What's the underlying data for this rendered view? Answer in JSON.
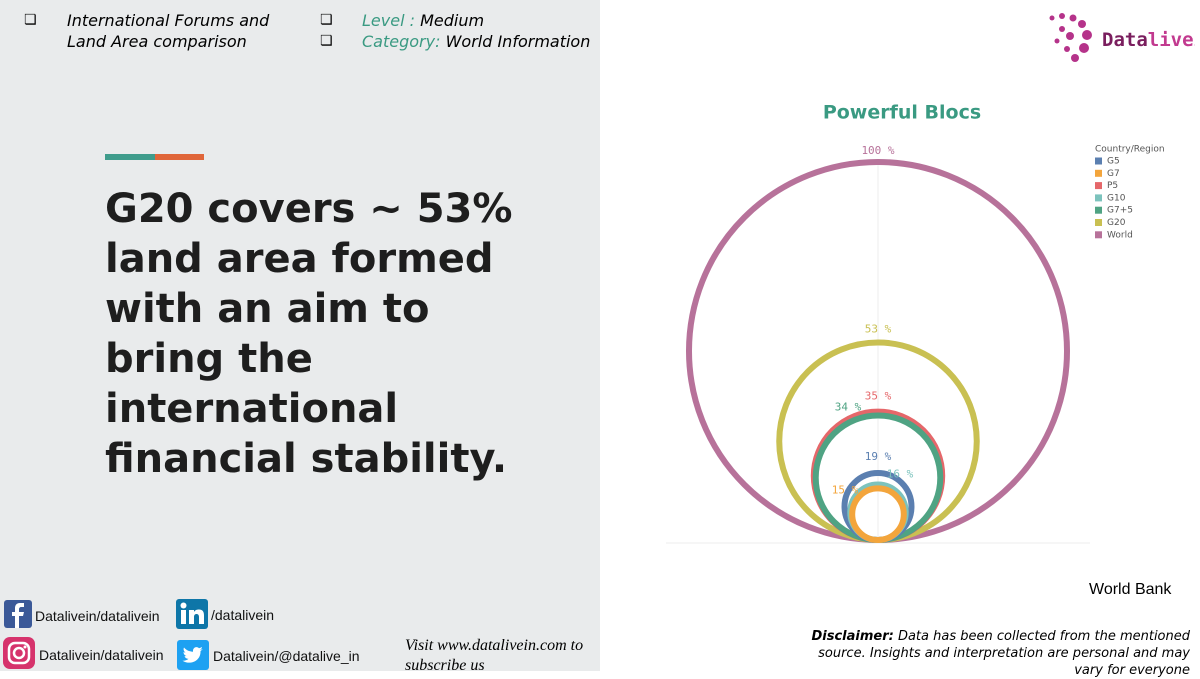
{
  "header": {
    "topic": "International Forums and Land Area comparison",
    "level_label": "Level :",
    "level": "Medium",
    "category_label": "Category:",
    "category": "World Information"
  },
  "headline": "G20 covers ~ 53% land area formed with an aim to bring the international financial stability.",
  "logo": {
    "part1": "Data",
    "part2": "livein"
  },
  "chart_data": {
    "type": "nested-circle",
    "title": "Powerful Blocs",
    "legend_title": "Country/Region",
    "legend": "top-right",
    "series": [
      {
        "name": "G5",
        "color": "#5b7fb0",
        "values": [
          19
        ],
        "value_labels": [
          "19 %"
        ]
      },
      {
        "name": "G7",
        "color": "#f3a53c",
        "values": [
          15
        ],
        "value_labels": [
          "15 %"
        ]
      },
      {
        "name": "P5",
        "color": "#e5676a",
        "values": [
          35
        ],
        "value_labels": [
          "35 %"
        ]
      },
      {
        "name": "G10",
        "color": "#7cc3bd",
        "values": [
          16
        ],
        "value_labels": [
          "16 %"
        ]
      },
      {
        "name": "G7+5",
        "color": "#4fa383",
        "values": [
          34
        ],
        "value_labels": [
          "34 %"
        ]
      },
      {
        "name": "G20",
        "color": "#c9c052",
        "values": [
          53
        ],
        "value_labels": [
          "53 %"
        ]
      },
      {
        "name": "World",
        "color": "#b7729a",
        "values": [
          100
        ],
        "value_labels": [
          "100 %"
        ]
      }
    ]
  },
  "source": "World Bank",
  "disclaimer": {
    "label": "Disclaimer:",
    "text": "Data has been collected from the mentioned source. Insights and interpretation are personal and may vary for everyone"
  },
  "social": {
    "facebook": "Datalivein/datalivein",
    "linkedin": "/datalivein",
    "instagram": "Datalivein/datalivein",
    "twitter": "Datalivein/@datalive_in",
    "visit": "Visit www.datalivein.com to subscribe us"
  }
}
